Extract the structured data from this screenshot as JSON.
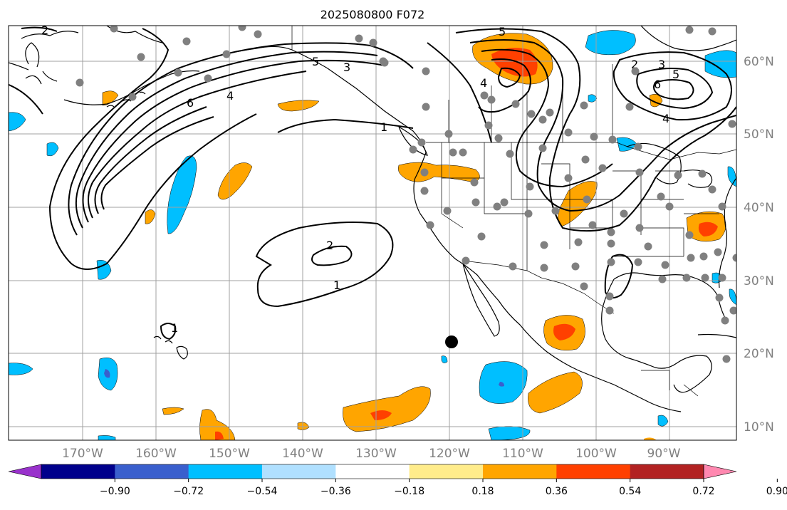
{
  "title": "2025080800 F072",
  "latitude_labels": [
    "60°N",
    "50°N",
    "40°N",
    "30°N",
    "20°N",
    "10°N"
  ],
  "longitude_labels": [
    "170°W",
    "160°W",
    "150°W",
    "140°W",
    "130°W",
    "120°W",
    "110°W",
    "100°W",
    "90°W"
  ],
  "colorbar": {
    "tick_labels": [
      "−0.90",
      "−0.72",
      "−0.54",
      "−0.36",
      "−0.18",
      "0.18",
      "0.36",
      "0.54",
      "0.72",
      "0.90"
    ],
    "colors": [
      "#9932cc",
      "#00008b",
      "#3a5fcd",
      "#00bfff",
      "#b0e0ff",
      "#ffffff",
      "#ffec8b",
      "#ffa500",
      "#ff4000",
      "#b22222",
      "#ff88b0"
    ]
  },
  "contour_labels": [
    "1",
    "2",
    "3",
    "4",
    "5",
    "6"
  ],
  "colors": {
    "grid": "#a0a0a0",
    "station_dot": "#808080",
    "marker": "#000000"
  }
}
